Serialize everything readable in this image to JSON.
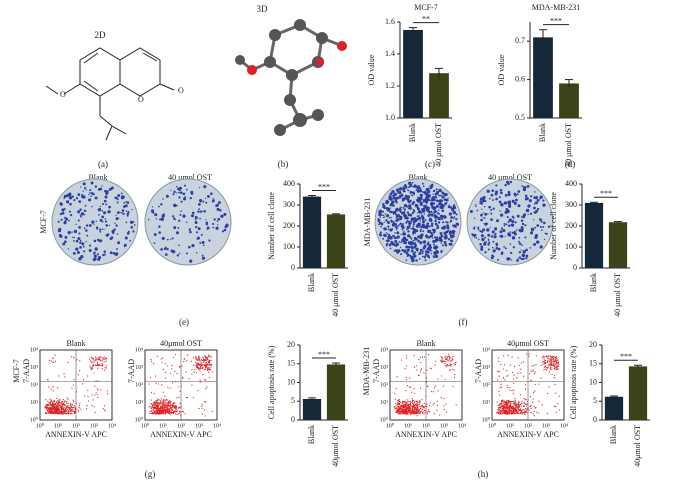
{
  "chart_data": [
    {
      "type": "bar",
      "title": "MCF-7",
      "ylabel": "OD value",
      "categories": [
        "Blank",
        "40 μmol OST"
      ],
      "values": [
        1.55,
        1.28
      ],
      "errors": [
        0.015,
        0.03
      ],
      "colors": [
        "#15283a",
        "#3b4419"
      ],
      "ylim": [
        1.0,
        1.6
      ],
      "yticks": [
        {
          "value": 1.0,
          "label": "1.0"
        },
        {
          "value": 1.2,
          "label": "1.2"
        },
        {
          "value": 1.4,
          "label": "1.4"
        },
        {
          "value": 1.6,
          "label": "1.6"
        }
      ],
      "annotation": "**",
      "panel": "(c)"
    },
    {
      "type": "bar",
      "title": "MDA-MB-231",
      "ylabel": "OD value",
      "categories": [
        "Blank",
        "40 μmol OST"
      ],
      "values": [
        0.71,
        0.59
      ],
      "errors": [
        0.02,
        0.01
      ],
      "colors": [
        "#15283a",
        "#3b4419"
      ],
      "ylim": [
        0.5,
        0.75
      ],
      "yticks": [
        0.5,
        0.6,
        0.7
      ],
      "annotation": "***",
      "panel": "(d)"
    },
    {
      "type": "bar",
      "ylabel": "Number of cell clone",
      "categories": [
        "Blank",
        "40 μmol OST"
      ],
      "values": [
        340,
        255
      ],
      "errors": [
        5,
        3
      ],
      "colors": [
        "#15283a",
        "#3b4419"
      ],
      "ylim": [
        0,
        400
      ],
      "yticks": [
        0,
        100,
        200,
        300,
        400
      ],
      "annotation": "***",
      "panel": "(e)"
    },
    {
      "type": "bar",
      "ylabel": "Number of cell clone",
      "categories": [
        "Blank",
        "40 μmol OST"
      ],
      "values": [
        310,
        218
      ],
      "errors": [
        3,
        3
      ],
      "colors": [
        "#15283a",
        "#3b4419"
      ],
      "ylim": [
        0,
        400
      ],
      "yticks": [
        0,
        100,
        200,
        300,
        400
      ],
      "annotation": "***",
      "panel": "(f)"
    },
    {
      "type": "bar",
      "ylabel": "Cell apoptosis rate (%)",
      "categories": [
        "Blank",
        "40μmol OST"
      ],
      "values": [
        5.6,
        14.8
      ],
      "errors": [
        0.3,
        0.4
      ],
      "colors": [
        "#15283a",
        "#3b4419"
      ],
      "ylim": [
        0,
        20
      ],
      "yticks": [
        0,
        5,
        10,
        15,
        20
      ],
      "annotation": "***",
      "panel": "(g)"
    },
    {
      "type": "bar",
      "ylabel": "Cell apoptosis rate (%)",
      "categories": [
        "Blank",
        "40μmol OST"
      ],
      "values": [
        6.2,
        14.3
      ],
      "errors": [
        0.2,
        0.3
      ],
      "colors": [
        "#15283a",
        "#3b4419"
      ],
      "ylim": [
        0,
        20
      ],
      "yticks": [
        0,
        5,
        10,
        15,
        20
      ],
      "annotation": "***",
      "panel": "(h)"
    }
  ],
  "structures": {
    "label_2d": "2D",
    "label_3d": "3D",
    "panel_a": "(a)",
    "panel_b": "(b)"
  },
  "plates": {
    "blank": "Blank",
    "treated": "40 μmol OST",
    "row_e": "MCF-7",
    "row_f": "MDA-MB-231"
  },
  "flow": {
    "x_label": "ANNEXIN-V APC",
    "y_label": "7-AAD",
    "ticks": [
      "10⁰",
      "10¹",
      "10²",
      "10³",
      "10⁴"
    ],
    "blank": "Blank",
    "treated": "40μmol OST",
    "row_g": "MCF-7",
    "row_h": "MDA-MB-231"
  }
}
